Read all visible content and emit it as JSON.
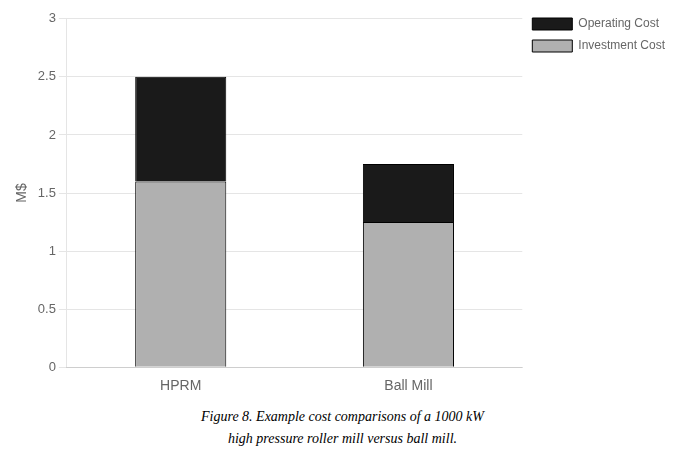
{
  "chart_data": {
    "type": "bar",
    "stacked": true,
    "categories": [
      "HPRM",
      "Ball Mill"
    ],
    "series": [
      {
        "name": "Investment Cost",
        "color": "#b0b0b0",
        "values": [
          1.6,
          1.25
        ]
      },
      {
        "name": "Operating Cost",
        "color": "#1a1a1a",
        "values": [
          0.9,
          0.5
        ]
      }
    ],
    "ylabel": "M$",
    "ylim": [
      0,
      3
    ],
    "yticks": [
      0,
      0.5,
      1,
      1.5,
      2,
      2.5,
      3
    ],
    "grid": true,
    "legend": "upper right",
    "annotations": [
      "Figure 8. Example cost comparisons of a 1000 kW",
      "high pressure roller mill versus ball mill."
    ]
  }
}
